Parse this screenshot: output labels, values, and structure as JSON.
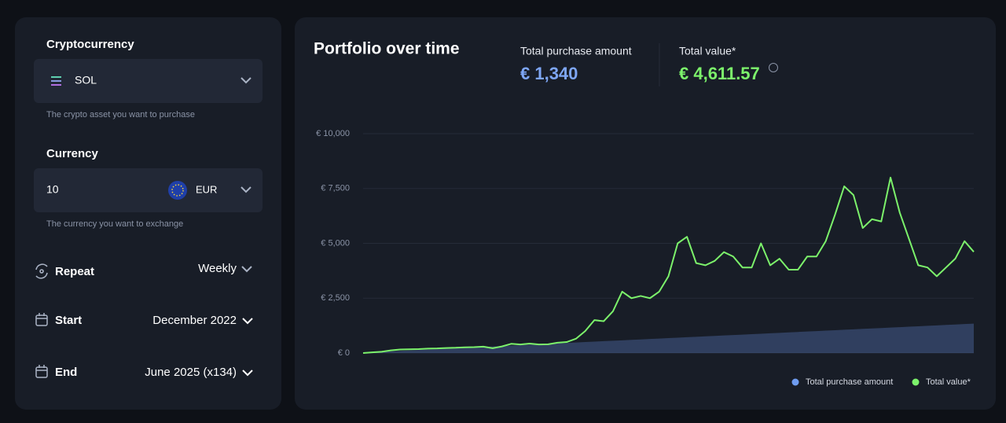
{
  "form": {
    "cryptocurrency": {
      "label": "Cryptocurrency",
      "value": "SOL",
      "help": "The crypto asset you want to purchase"
    },
    "currency": {
      "label": "Currency",
      "amount": "10",
      "code": "EUR",
      "help": "The currency you want to exchange"
    },
    "repeat": {
      "label": "Repeat",
      "value": "Weekly"
    },
    "start": {
      "label": "Start",
      "value": "December 2022"
    },
    "end": {
      "label": "End",
      "value": "June 2025 (x134)"
    }
  },
  "summary": {
    "purchase_label": "Total purchase amount",
    "purchase_value": "€ 1,340",
    "total_label": "Total value*",
    "total_value": "€ 4,611.57"
  },
  "chart_data": {
    "type": "area-line",
    "title": "Portfolio over time",
    "categories": [
      null,
      null,
      null,
      null,
      null,
      null,
      null,
      null,
      null,
      null,
      null,
      null,
      null,
      null,
      null,
      null,
      null,
      null,
      null,
      null,
      null,
      null,
      null,
      null,
      null,
      null,
      null,
      null,
      null,
      null,
      null,
      null,
      null,
      null,
      null,
      null,
      null,
      null,
      null,
      null,
      null,
      null,
      null,
      null,
      null,
      null,
      null,
      null,
      null,
      null,
      null,
      null,
      null,
      null,
      null,
      null,
      null,
      null,
      null,
      null,
      null,
      null,
      null,
      null,
      null,
      null,
      null
    ],
    "series": [
      {
        "name": "Total purchase amount",
        "color": "#6f9cf0",
        "values": [
          20,
          40,
          60,
          80,
          100,
          120,
          140,
          160,
          180,
          200,
          220,
          240,
          260,
          280,
          300,
          320,
          340,
          360,
          380,
          400,
          420,
          440,
          460,
          480,
          500,
          520,
          540,
          560,
          580,
          600,
          620,
          640,
          660,
          680,
          700,
          720,
          740,
          760,
          780,
          800,
          820,
          840,
          860,
          880,
          900,
          920,
          940,
          960,
          980,
          1000,
          1020,
          1040,
          1060,
          1080,
          1100,
          1120,
          1140,
          1160,
          1180,
          1200,
          1220,
          1240,
          1260,
          1280,
          1300,
          1320,
          1340
        ]
      },
      {
        "name": "Total value*",
        "color": "#7cf26b",
        "values": [
          0,
          30,
          60,
          120,
          160,
          170,
          180,
          200,
          210,
          230,
          240,
          260,
          270,
          290,
          220,
          300,
          420,
          390,
          430,
          390,
          400,
          470,
          500,
          650,
          1000,
          1500,
          1450,
          1900,
          2800,
          2500,
          2600,
          2500,
          2800,
          3500,
          5000,
          5300,
          4100,
          4000,
          4200,
          4600,
          4400,
          3900,
          3900,
          5000,
          4000,
          4300,
          3800,
          3800,
          4400,
          4400,
          5100,
          6300,
          7600,
          7200,
          5700,
          6100,
          6000,
          8000,
          6400,
          5200,
          4000,
          3900,
          3500,
          3900,
          4300,
          5100,
          4611.57
        ]
      }
    ],
    "ylim": [
      0,
      10000
    ],
    "yticks": [
      {
        "value": 0,
        "label": "€ 0"
      },
      {
        "value": 2500,
        "label": "€ 2,500"
      },
      {
        "value": 5000,
        "label": "€ 5,000"
      },
      {
        "value": 7500,
        "label": "€ 7,500"
      },
      {
        "value": 10000,
        "label": "€ 10,000"
      }
    ],
    "grid": true
  }
}
